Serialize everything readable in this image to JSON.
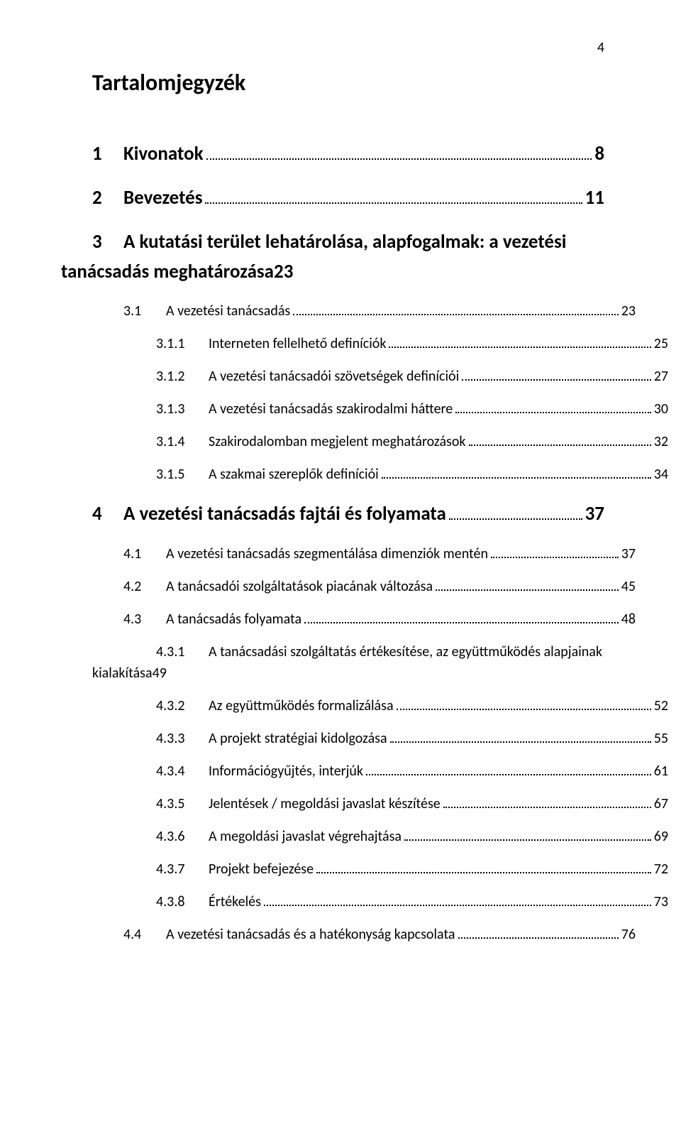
{
  "page_number": "4",
  "toc_title": "Tartalomjegyzék",
  "font": {
    "family": "Calibri",
    "title_pt": 24,
    "h1_pt": 20,
    "body_pt": 15
  },
  "colors": {
    "text": "#000000",
    "background": "#ffffff",
    "leader": "#000000"
  },
  "entries": [
    {
      "level": 1,
      "num": "1",
      "title": "Kivonatok",
      "page": "8"
    },
    {
      "level": 1,
      "num": "2",
      "title": "Bevezetés",
      "page": "11"
    },
    {
      "level": 1,
      "num": "3",
      "title_line1": "A kutatási terület lehatárolása, alapfogalmak: a vezetési",
      "title_line2": "tanácsadás meghatározása",
      "page": "23",
      "multiline": true
    },
    {
      "level": 2,
      "num": "3.1",
      "title": "A vezetési tanácsadás",
      "page": "23"
    },
    {
      "level": 3,
      "num": "3.1.1",
      "title": "Interneten fellelhető definíciók",
      "page": "25"
    },
    {
      "level": 3,
      "num": "3.1.2",
      "title": "A vezetési tanácsadói szövetségek definíciói",
      "page": "27"
    },
    {
      "level": 3,
      "num": "3.1.3",
      "title": "A vezetési tanácsadás szakirodalmi háttere",
      "page": "30"
    },
    {
      "level": 3,
      "num": "3.1.4",
      "title": "Szakirodalomban megjelent meghatározások",
      "page": "32"
    },
    {
      "level": 3,
      "num": "3.1.5",
      "title": "A szakmai szereplők definíciói",
      "page": "34"
    },
    {
      "level": 1,
      "num": "4",
      "title": "A vezetési tanácsadás fajtái és folyamata",
      "page": "37"
    },
    {
      "level": 2,
      "num": "4.1",
      "title": "A vezetési tanácsadás szegmentálása dimenziók mentén",
      "page": "37"
    },
    {
      "level": 2,
      "num": "4.2",
      "title": "A tanácsadói szolgáltatások piacának változása",
      "page": "45"
    },
    {
      "level": 2,
      "num": "4.3",
      "title": "A tanácsadás folyamata",
      "page": "48"
    },
    {
      "level": 3,
      "num": "4.3.1",
      "title_line1": "A tanácsadási szolgáltatás értékesítése, az együttműködés alapjainak",
      "title_line2": "kialakítása",
      "page": "49",
      "multiline": true,
      "line2_outdent": true
    },
    {
      "level": 3,
      "num": "4.3.2",
      "title": "Az együttműködés formalizálása",
      "page": "52"
    },
    {
      "level": 3,
      "num": "4.3.3",
      "title": "A projekt stratégiai kidolgozása",
      "page": "55"
    },
    {
      "level": 3,
      "num": "4.3.4",
      "title": "Információgyűjtés, interjúk",
      "page": "61"
    },
    {
      "level": 3,
      "num": "4.3.5",
      "title": "Jelentések / megoldási javaslat készítése",
      "page": "67"
    },
    {
      "level": 3,
      "num": "4.3.6",
      "title": "A megoldási javaslat végrehajtása",
      "page": "69"
    },
    {
      "level": 3,
      "num": "4.3.7",
      "title": "Projekt befejezése",
      "page": "72"
    },
    {
      "level": 3,
      "num": "4.3.8",
      "title": "Értékelés",
      "page": "73"
    },
    {
      "level": 2,
      "num": "4.4",
      "title": "A vezetési tanácsadás és a hatékonyság kapcsolata",
      "page": "76"
    }
  ]
}
